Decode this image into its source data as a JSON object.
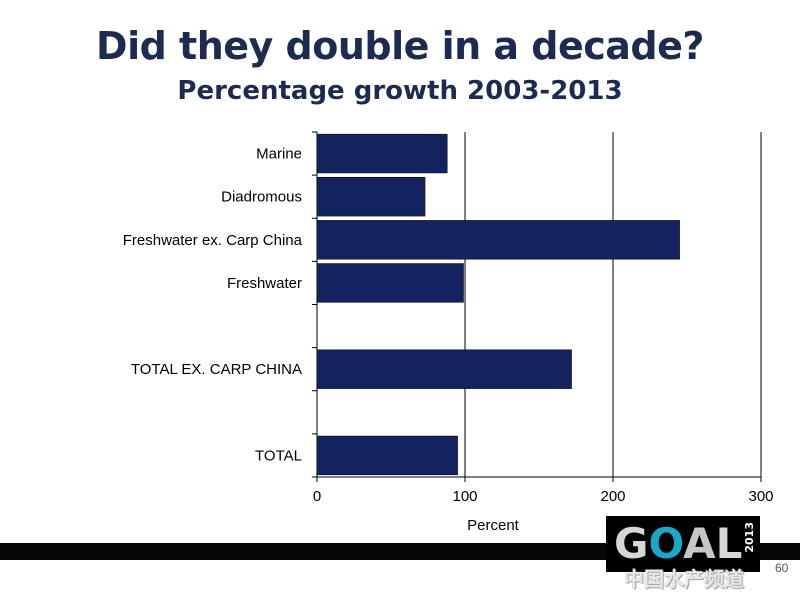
{
  "slide": {
    "title": "Did they double in a decade?",
    "subtitle": "Percentage growth 2003-2013",
    "page_number": "60",
    "logo": {
      "text_parts": [
        {
          "text": "G",
          "color": "#d6d6d6"
        },
        {
          "text": "O",
          "color": "#1aa8c9"
        },
        {
          "text": "A",
          "color": "#c7c7c7"
        },
        {
          "text": "L",
          "color": "#d6d6d6"
        }
      ],
      "year": "2013"
    },
    "watermark": "中国水产频道"
  },
  "chart_data": {
    "type": "bar",
    "orientation": "horizontal",
    "categories": [
      "Marine",
      "Diadromous",
      "Freshwater ex. Carp China",
      "Freshwater",
      "",
      "TOTAL EX. CARP CHINA",
      "",
      "TOTAL"
    ],
    "values": [
      88,
      73,
      245,
      99,
      null,
      172,
      null,
      95
    ],
    "xlabel": "Percent",
    "xlim": [
      0,
      300
    ],
    "xticks": [
      0,
      100,
      200,
      300
    ],
    "grid": "vertical",
    "bar_color": "#14235f"
  }
}
